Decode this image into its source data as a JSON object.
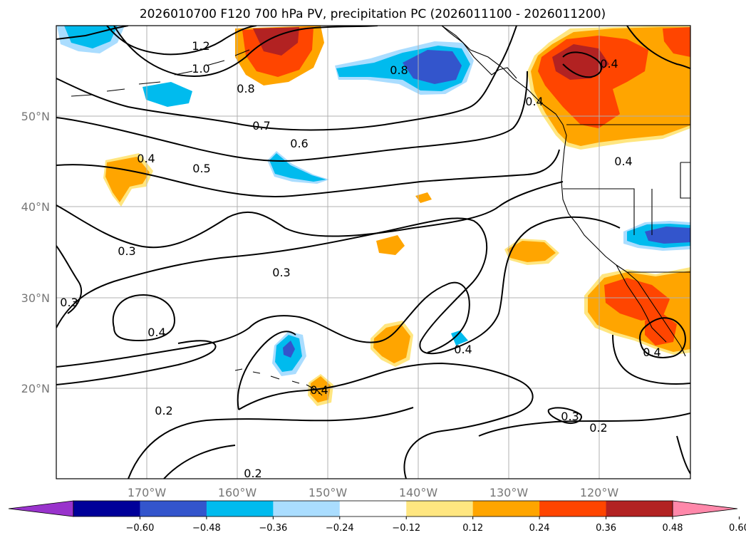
{
  "title": "2026010700 F120 700 hPa PV, precipitation PC (2026011100 - 2026011200)",
  "map": {
    "lon_range": [
      -180,
      -110
    ],
    "lat_range": [
      10,
      60
    ],
    "lon_ticks": [
      -170,
      -160,
      -150,
      -140,
      -130,
      -120
    ],
    "lon_tick_labels": [
      "170°W",
      "160°W",
      "150°W",
      "140°W",
      "130°W",
      "120°W"
    ],
    "lat_ticks": [
      20,
      30,
      40,
      50
    ],
    "lat_tick_labels": [
      "20°N",
      "30°N",
      "40°N",
      "50°N"
    ]
  },
  "colorbar": {
    "boundaries": [
      -0.6,
      -0.48,
      -0.36,
      -0.24,
      -0.12,
      0.12,
      0.24,
      0.36,
      0.48,
      0.6
    ],
    "tick_labels": [
      "−0.60",
      "−0.48",
      "−0.36",
      "−0.24",
      "−0.12",
      "0.12",
      "0.24",
      "0.36",
      "0.48",
      "0.60"
    ],
    "colors": [
      "#9933cc",
      "#000099",
      "#3355cc",
      "#00bbee",
      "#aaddff",
      "#ffffff",
      "#ffe680",
      "#ffa500",
      "#ff4500",
      "#b22222",
      "#ff88aa"
    ],
    "extend": "both"
  },
  "contour_labels": [
    {
      "text": "1.2"
    },
    {
      "text": "1.0"
    },
    {
      "text": "0.8"
    },
    {
      "text": "0.8"
    },
    {
      "text": "0.7"
    },
    {
      "text": "0.6"
    },
    {
      "text": "0.5"
    },
    {
      "text": "0.4"
    },
    {
      "text": "0.4"
    },
    {
      "text": "0.4"
    },
    {
      "text": "0.4"
    },
    {
      "text": "0.3"
    },
    {
      "text": "0.3"
    },
    {
      "text": "0.3"
    },
    {
      "text": "0.4"
    },
    {
      "text": "0.4"
    },
    {
      "text": "0.4"
    },
    {
      "text": "0.4"
    },
    {
      "text": "0.2"
    },
    {
      "text": "0.3"
    },
    {
      "text": "0.2"
    },
    {
      "text": "0.2"
    }
  ]
}
